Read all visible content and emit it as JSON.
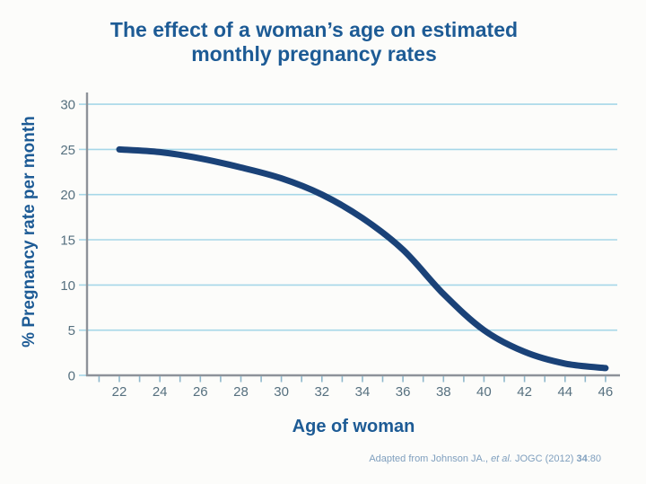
{
  "title": {
    "line1": "The effect of a woman’s age on estimated",
    "line2": "monthly pregnancy rates"
  },
  "chart_data": {
    "type": "line",
    "title": "The effect of a woman’s age on estimated monthly pregnancy rates",
    "xlabel": "Age of woman",
    "ylabel": "% Pregnancy rate per month",
    "x": [
      22,
      24,
      26,
      28,
      30,
      32,
      34,
      36,
      38,
      40,
      42,
      44,
      46
    ],
    "y": [
      25.0,
      24.7,
      24.0,
      23.0,
      21.8,
      20.0,
      17.4,
      13.9,
      9.0,
      5.0,
      2.6,
      1.3,
      0.8
    ],
    "xticks": [
      22,
      24,
      26,
      28,
      30,
      32,
      34,
      36,
      38,
      40,
      42,
      44,
      46
    ],
    "yticks": [
      0,
      5,
      10,
      15,
      20,
      25,
      30
    ],
    "xlim": [
      21,
      47
    ],
    "ylim": [
      0,
      31
    ],
    "grid": "horizontal",
    "legend": "none"
  },
  "citation": {
    "prefix": "Adapted from Johnson JA., ",
    "etal": "et al.",
    "mid": " JOGC (2012) ",
    "volume": "34",
    "suffix": ":80"
  },
  "colors": {
    "title_blue": "#1d5b95",
    "curve_navy": "#1a4278",
    "gridline_blue": "#a6d7e8",
    "axis_gray": "#8d9299",
    "tick_label": "#56707f",
    "tick_mark": "#8fb8cc",
    "citation_blue": "#7f9fbe"
  }
}
